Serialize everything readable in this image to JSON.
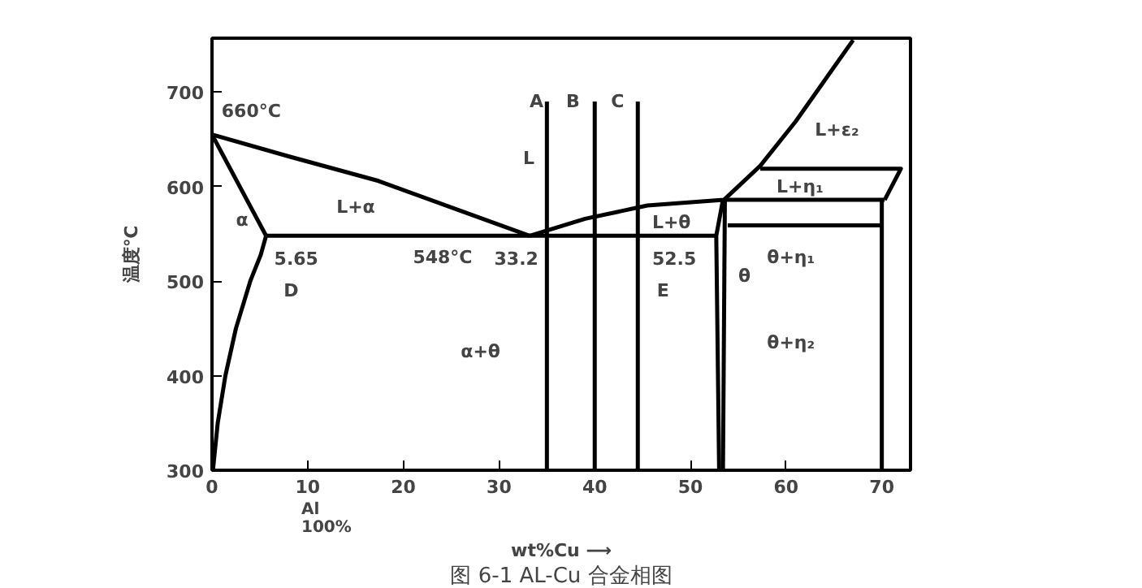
{
  "chart_data": {
    "type": "line",
    "title": "图 6-1 AL-Cu 合金相图",
    "xlabel": "wt%Cu ⟶",
    "ylabel": "温度℃",
    "xlim": [
      0,
      73
    ],
    "ylim": [
      300,
      757
    ],
    "xticks": [
      0,
      10,
      20,
      30,
      40,
      50,
      60,
      70
    ],
    "yticks": [
      300,
      400,
      500,
      600,
      700
    ],
    "grid": false,
    "marker": "none",
    "line_style": "solid",
    "series": [
      {
        "color": "#000000",
        "x": [
          0,
          8,
          17.4,
          25,
          33.2
        ],
        "values": [
          655,
          632,
          606,
          578,
          548
        ]
      },
      {
        "color": "#000000",
        "x": [
          0,
          5.65
        ],
        "values": [
          655,
          548
        ]
      },
      {
        "color": "#000000",
        "x": [
          5.65,
          5.1,
          4,
          2.5,
          1.4,
          0.6,
          0.1
        ],
        "values": [
          548,
          528,
          500,
          450,
          400,
          350,
          300
        ]
      },
      {
        "color": "#000000",
        "x": [
          5.65,
          52.7
        ],
        "values": [
          548,
          548
        ]
      },
      {
        "color": "#000000",
        "x": [
          33.2,
          39,
          45.5,
          53.5,
          57.3,
          61,
          67
        ],
        "values": [
          548,
          566,
          580,
          586,
          622,
          669,
          755
        ]
      },
      {
        "color": "#000000",
        "x": [
          53.4,
          52.7,
          53.0
        ],
        "values": [
          586,
          548,
          300
        ]
      },
      {
        "color": "#000000",
        "x": [
          53.6,
          53.4
        ],
        "values": [
          586,
          300
        ]
      },
      {
        "color": "#000000",
        "x": [
          57.3,
          72,
          70.3
        ],
        "values": [
          619,
          619,
          586
        ]
      },
      {
        "color": "#000000",
        "x": [
          53.5,
          70.3
        ],
        "values": [
          586,
          586
        ]
      },
      {
        "color": "#000000",
        "x": [
          53.9,
          70
        ],
        "values": [
          559,
          559
        ]
      },
      {
        "color": "#000000",
        "x": [
          70,
          70
        ],
        "values": [
          586,
          300
        ]
      },
      {
        "color": "#000000",
        "x": [
          35,
          35
        ],
        "values": [
          690,
          300
        ]
      },
      {
        "color": "#000000",
        "x": [
          40,
          40
        ],
        "values": [
          690,
          300
        ]
      },
      {
        "color": "#000000",
        "x": [
          44.5,
          44.5
        ],
        "values": [
          690,
          300
        ]
      }
    ],
    "annotations": [
      "660°C",
      "L+α",
      "α",
      "5.65",
      "548°C",
      "33.2",
      "D",
      "L",
      "A",
      "B",
      "C",
      "L+θ",
      "52.5",
      "θ",
      "E",
      "α+θ",
      "L+ε₂",
      "L+η₁",
      "θ+η₁",
      "θ+η₂",
      "Al 100%"
    ]
  }
}
